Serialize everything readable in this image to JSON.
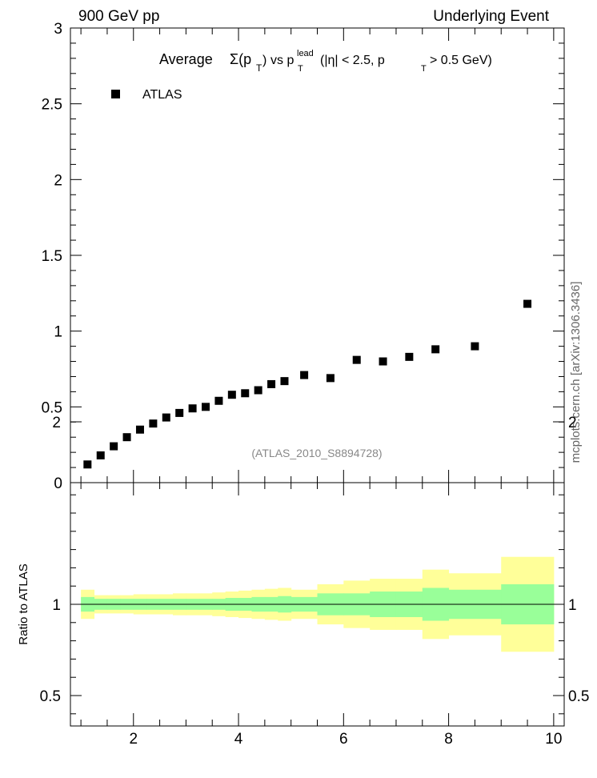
{
  "header": {
    "left": "900 GeV pp",
    "right": "Underlying Event"
  },
  "side_label": "mcplots.cern.ch [arXiv:1306.3436]",
  "chart_data": [
    {
      "type": "scatter",
      "title_parts": {
        "prefix": "Average",
        "sigma": "Σ(p",
        "sub_t1": "T",
        "close": ")",
        "vs": "vs p",
        "sup_lead": "lead",
        "sub_t2": "T",
        "cut1": "(|η| < 2.5, p",
        "sub_t3": "T",
        "cut2": "> 0.5 GeV)"
      },
      "legend": [
        "ATLAS"
      ],
      "legend_position": "top-left",
      "watermark": "(ATLAS_2010_S8894728)",
      "xlim": [
        0.8,
        10.2
      ],
      "ylim": [
        0,
        3
      ],
      "ytick_labels": [
        "0",
        "0.5",
        "1",
        "1.5",
        "2",
        "2.5",
        "3"
      ],
      "series": [
        {
          "name": "ATLAS",
          "marker": "square",
          "color": "#000000",
          "x": [
            1.125,
            1.375,
            1.625,
            1.875,
            2.125,
            2.375,
            2.625,
            2.875,
            3.125,
            3.375,
            3.625,
            3.875,
            4.125,
            4.375,
            4.625,
            4.875,
            5.25,
            5.75,
            6.25,
            6.75,
            7.25,
            7.75,
            8.5,
            9.5
          ],
          "y": [
            0.12,
            0.18,
            0.24,
            0.3,
            0.35,
            0.39,
            0.43,
            0.46,
            0.49,
            0.5,
            0.54,
            0.58,
            0.59,
            0.61,
            0.65,
            0.67,
            0.71,
            0.69,
            0.81,
            0.8,
            0.83,
            0.88,
            0.9,
            1.18
          ]
        }
      ]
    },
    {
      "type": "area",
      "ylabel": "Ratio to ATLAS",
      "xlim": [
        0.8,
        10.2
      ],
      "ylim": [
        0.35,
        2.25
      ],
      "xtick_labels": [
        "2",
        "4",
        "6",
        "8",
        "10"
      ],
      "ytick_labels": [
        "0.5",
        "1",
        "2"
      ],
      "reference_line": 1,
      "band_colors": {
        "stat": "#99ff99",
        "total": "#ffff99"
      },
      "bins": [
        1.0,
        1.25,
        1.5,
        1.75,
        2.0,
        2.25,
        2.5,
        2.75,
        3.0,
        3.25,
        3.5,
        3.75,
        4.0,
        4.25,
        4.5,
        4.75,
        5.0,
        5.5,
        6.0,
        6.5,
        7.0,
        7.5,
        8.0,
        9.0,
        10.0
      ],
      "stat_band": [
        [
          0.96,
          1.04
        ],
        [
          0.97,
          1.03
        ],
        [
          0.97,
          1.03
        ],
        [
          0.97,
          1.03
        ],
        [
          0.97,
          1.03
        ],
        [
          0.97,
          1.03
        ],
        [
          0.97,
          1.03
        ],
        [
          0.97,
          1.03
        ],
        [
          0.97,
          1.03
        ],
        [
          0.97,
          1.03
        ],
        [
          0.97,
          1.03
        ],
        [
          0.965,
          1.035
        ],
        [
          0.965,
          1.035
        ],
        [
          0.96,
          1.04
        ],
        [
          0.96,
          1.04
        ],
        [
          0.955,
          1.045
        ],
        [
          0.96,
          1.04
        ],
        [
          0.94,
          1.06
        ],
        [
          0.94,
          1.06
        ],
        [
          0.93,
          1.07
        ],
        [
          0.93,
          1.07
        ],
        [
          0.91,
          1.09
        ],
        [
          0.92,
          1.08
        ],
        [
          0.89,
          1.11
        ]
      ],
      "total_band": [
        [
          0.92,
          1.08
        ],
        [
          0.95,
          1.05
        ],
        [
          0.95,
          1.05
        ],
        [
          0.95,
          1.05
        ],
        [
          0.945,
          1.055
        ],
        [
          0.945,
          1.055
        ],
        [
          0.945,
          1.055
        ],
        [
          0.94,
          1.06
        ],
        [
          0.94,
          1.06
        ],
        [
          0.94,
          1.06
        ],
        [
          0.935,
          1.065
        ],
        [
          0.93,
          1.07
        ],
        [
          0.925,
          1.075
        ],
        [
          0.92,
          1.08
        ],
        [
          0.915,
          1.085
        ],
        [
          0.91,
          1.09
        ],
        [
          0.92,
          1.08
        ],
        [
          0.89,
          1.11
        ],
        [
          0.87,
          1.13
        ],
        [
          0.86,
          1.14
        ],
        [
          0.86,
          1.14
        ],
        [
          0.81,
          1.19
        ],
        [
          0.83,
          1.17
        ],
        [
          0.74,
          1.26
        ]
      ]
    }
  ]
}
